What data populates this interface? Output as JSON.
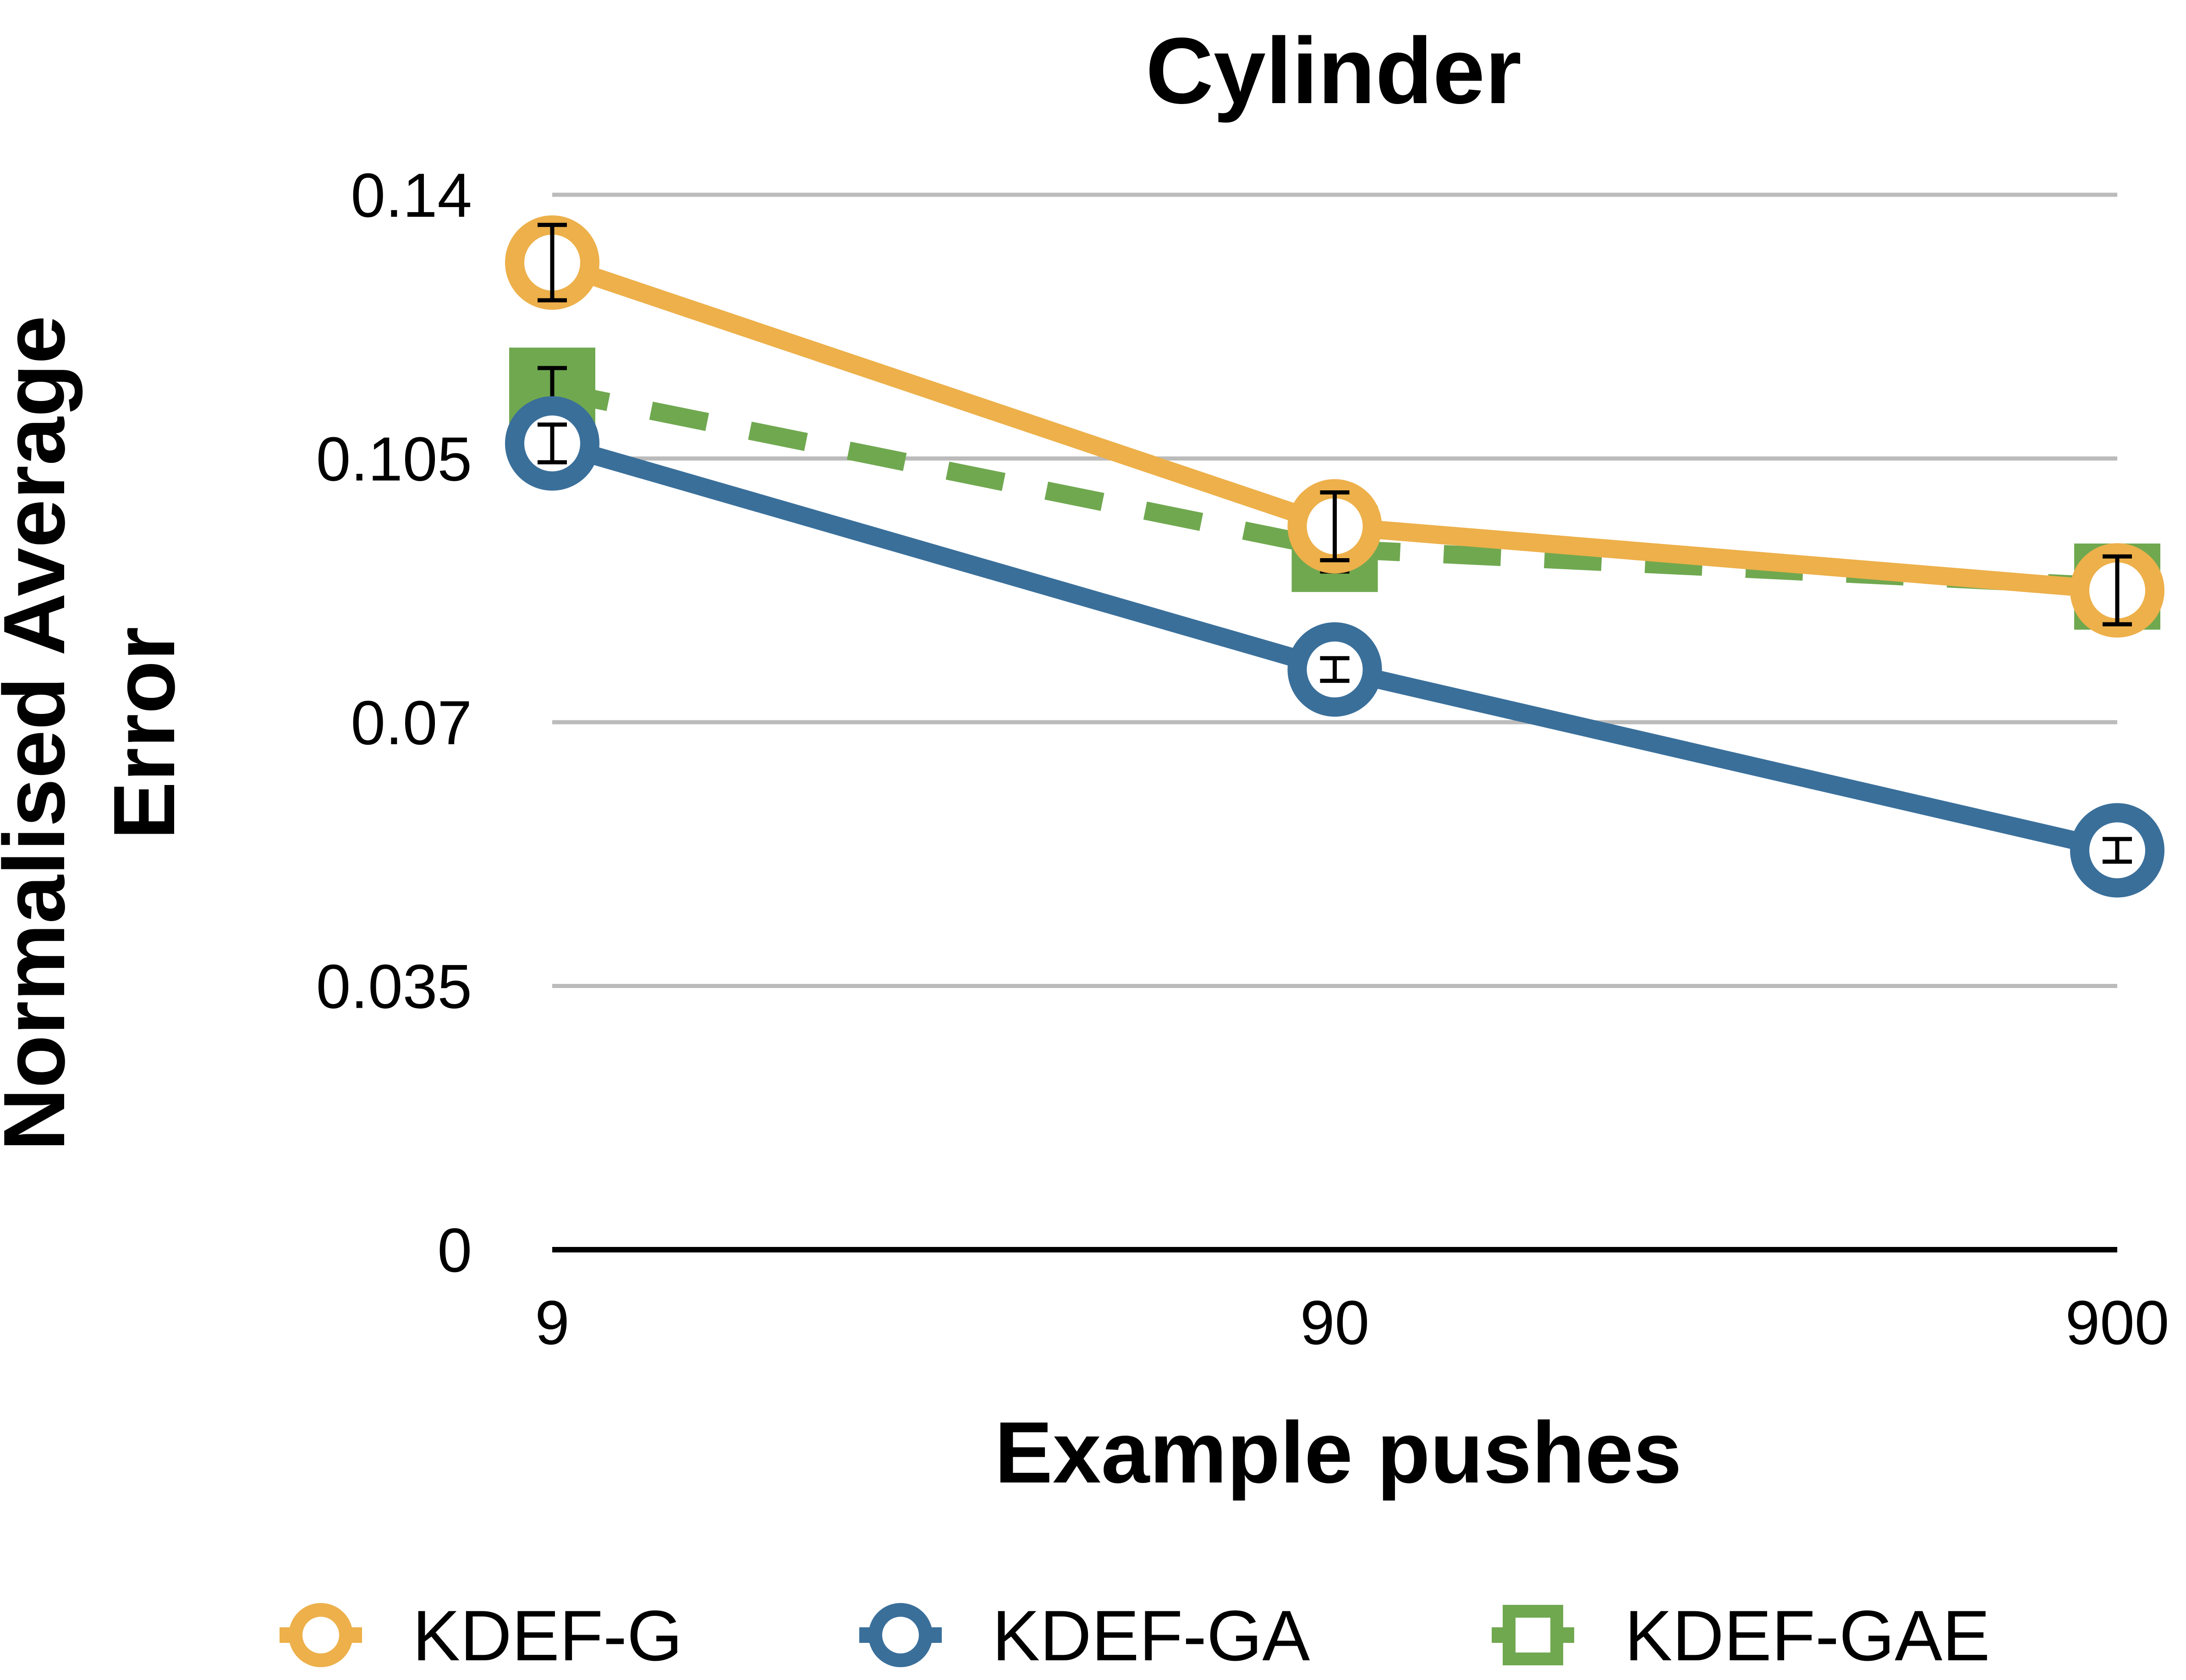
{
  "chart_data": {
    "type": "line",
    "title": "Cylinder",
    "xlabel": "Example pushes",
    "ylabel_lines": [
      "Normalised Average",
      "Error"
    ],
    "categories": [
      "9",
      "90",
      "900"
    ],
    "y_ticks": [
      "0",
      "0.035",
      "0.07",
      "0.105",
      "0.14"
    ],
    "ylim": [
      0,
      0.14
    ],
    "grid": true,
    "legend_position": "bottom",
    "series": [
      {
        "name": "KDEF-GAE",
        "values": [
          0.114,
          0.093,
          0.088
        ],
        "errors": [
          0.003,
          0.003,
          0.003
        ],
        "color": "#70A850",
        "marker": "square",
        "dash": "dashed"
      },
      {
        "name": "KDEF-G",
        "values": [
          0.131,
          0.096,
          0.0875
        ],
        "errors": [
          0.005,
          0.0045,
          0.0045
        ],
        "color": "#EDB04A",
        "marker": "circle",
        "dash": "solid"
      },
      {
        "name": "KDEF-GA",
        "values": [
          0.107,
          0.077,
          0.053
        ],
        "errors": [
          0.0025,
          0.0015,
          0.0015
        ],
        "color": "#3A6F9A",
        "marker": "circle",
        "dash": "solid"
      }
    ],
    "legend_order": [
      "KDEF-G",
      "KDEF-GA",
      "KDEF-GAE"
    ]
  }
}
